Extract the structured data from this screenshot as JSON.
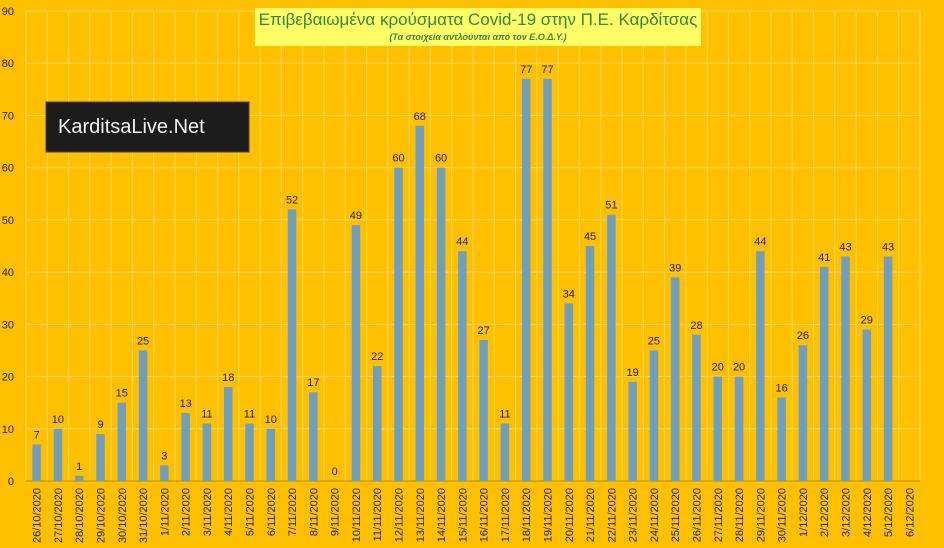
{
  "chart_data": {
    "type": "bar",
    "title": "Επιβεβαιωμένα κρούσματα Covid-19 στην Π.Ε. Καρδίτσας",
    "subtitle": "(Τα στοιχεία αντλούνται από τον Ε.Ο.Δ.Υ.)",
    "logo": "KarditsaLive.Net",
    "categories": [
      "26/10/2020",
      "27/10/2020",
      "28/10/2020",
      "29/10/2020",
      "30/10/2020",
      "31/10/2020",
      "1/11/2020",
      "2/11/2020",
      "3/11/2020",
      "4/11/2020",
      "5/11/2020",
      "6/11/2020",
      "7/11/2020",
      "8/11/2020",
      "9/11/2020",
      "10/11/2020",
      "11/11/2020",
      "12/11/2020",
      "13/11/2020",
      "14/11/2020",
      "15/11/2020",
      "16/11/2020",
      "17/11/2020",
      "18/11/2020",
      "19/11/2020",
      "20/11/2020",
      "21/11/2020",
      "22/11/2020",
      "23/11/2020",
      "24/11/2020",
      "25/11/2020",
      "26/11/2020",
      "27/11/2020",
      "28/11/2020",
      "29/11/2020",
      "30/11/2020",
      "1/12/2020",
      "2/12/2020",
      "3/12/2020",
      "4/12/2020",
      "5/12/2020",
      "6/12/2020"
    ],
    "values": [
      7,
      10,
      1,
      9,
      15,
      25,
      3,
      13,
      11,
      18,
      11,
      10,
      52,
      17,
      0,
      49,
      22,
      60,
      68,
      60,
      44,
      27,
      11,
      77,
      77,
      34,
      45,
      51,
      19,
      25,
      39,
      28,
      20,
      20,
      44,
      16,
      26,
      41,
      43,
      29,
      43,
      null
    ],
    "color": "#6e9fc1",
    "ylim": [
      0,
      90
    ],
    "yticks": [
      0,
      10,
      20,
      30,
      40,
      50,
      60,
      70,
      80,
      90
    ],
    "grid": true
  }
}
